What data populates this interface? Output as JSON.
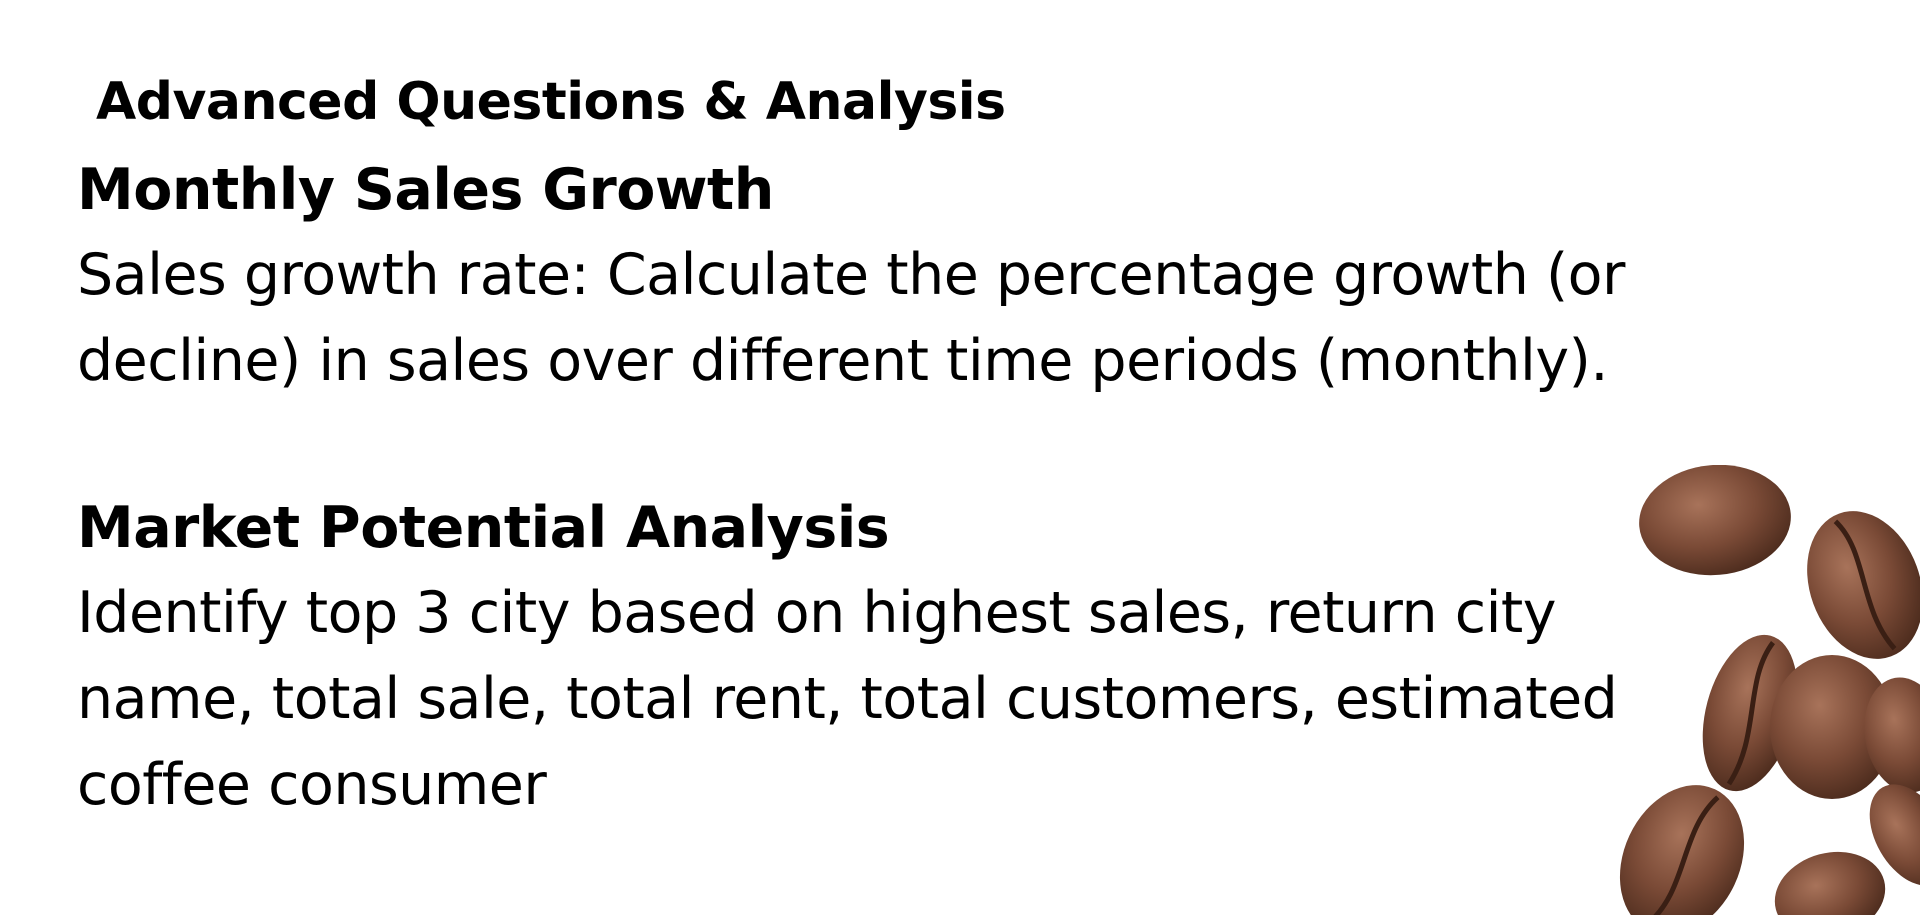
{
  "slide": {
    "title": "Advanced Questions & Analysis",
    "sections": [
      {
        "heading": "Monthly Sales Growth",
        "body": "Sales growth rate: Calculate the percentage growth (or decline) in sales over different time periods (monthly)."
      },
      {
        "heading": "Market Potential Analysis",
        "body": "Identify top 3 city based on highest sales, return city name, total sale, total rent, total customers, estimated coffee consumer"
      }
    ]
  },
  "decoration": {
    "image": "coffee-beans-icon",
    "bean_color": "#7a4a36",
    "bean_highlight": "#a8735a",
    "bean_shadow": "#4a2a1c"
  }
}
